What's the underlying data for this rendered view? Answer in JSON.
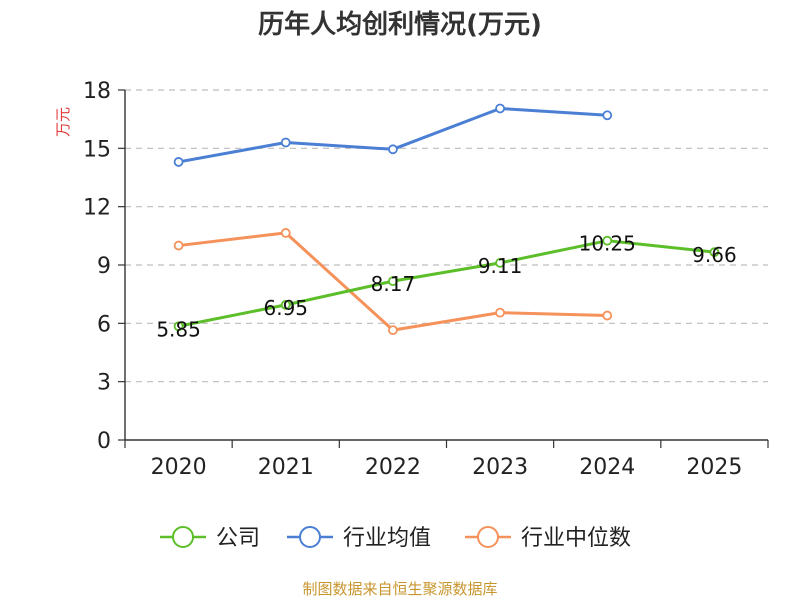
{
  "chart_data": {
    "type": "line",
    "title": "历年人均创利情况(万元)",
    "ylabel": "万元",
    "xlabel": "",
    "categories": [
      "2020",
      "2021",
      "2022",
      "2023",
      "2024",
      "2025"
    ],
    "ylim": [
      0,
      18
    ],
    "yticks": [
      0,
      3,
      6,
      9,
      12,
      15,
      18
    ],
    "grid": true,
    "legend_position": "bottom",
    "series": [
      {
        "name": "公司",
        "color": "#5cbf2a",
        "values": [
          5.85,
          6.95,
          8.17,
          9.11,
          10.25,
          9.66
        ],
        "labels": [
          "5.85",
          "6.95",
          "8.17",
          "9.11",
          "10.25",
          "9.66"
        ]
      },
      {
        "name": "行业均值",
        "color": "#4a7fd4",
        "values": [
          14.3,
          15.3,
          14.95,
          17.05,
          16.7,
          null
        ]
      },
      {
        "name": "行业中位数",
        "color": "#f5915a",
        "values": [
          10.0,
          10.65,
          5.65,
          6.55,
          6.4,
          null
        ]
      }
    ],
    "source": "制图数据来自恒生聚源数据库"
  }
}
